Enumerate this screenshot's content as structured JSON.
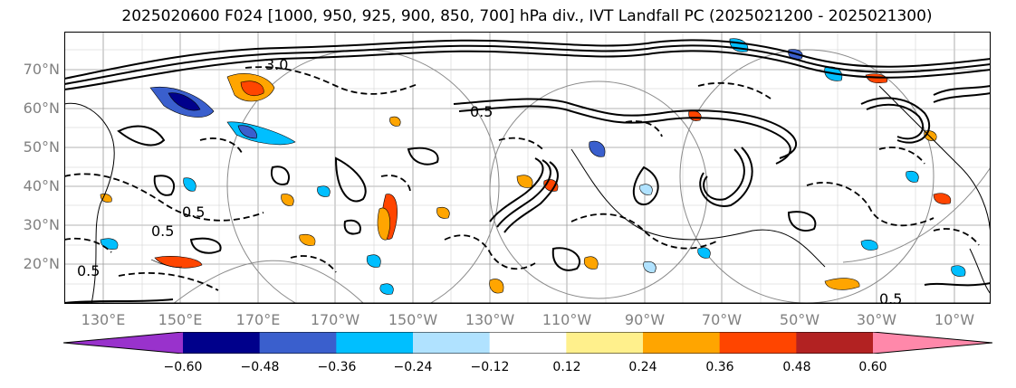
{
  "title": "2025020600 F024 [1000, 950, 925, 900, 850, 700] hPa div., IVT Landfall PC (2025021200 - 2025021300)",
  "map": {
    "lat_labels": [
      "70°N",
      "60°N",
      "50°N",
      "40°N",
      "30°N",
      "20°N"
    ],
    "lon_labels": [
      "130°E",
      "150°E",
      "170°E",
      "170°W",
      "150°W",
      "130°W",
      "110°W",
      "90°W",
      "70°W",
      "50°W",
      "30°W",
      "10°W"
    ],
    "contour_labels": [
      "3.0",
      "0.5",
      "0.5",
      "0.5",
      "0.5",
      "0.5"
    ],
    "line_colors": {
      "contour": "#000000",
      "coast": "#000000",
      "grid": "#808080"
    }
  },
  "colorbar": {
    "colors": [
      "#9932cc",
      "#00008b",
      "#3a5fcd",
      "#00bfff",
      "#b0e2ff",
      "#ffffff",
      "#fff08c",
      "#ffa500",
      "#ff4500",
      "#b22222",
      "#ff88aa"
    ],
    "tick_labels": [
      "−0.60",
      "−0.48",
      "−0.36",
      "−0.24",
      "−0.12",
      "0.12",
      "0.24",
      "0.36",
      "0.48",
      "0.60"
    ]
  }
}
